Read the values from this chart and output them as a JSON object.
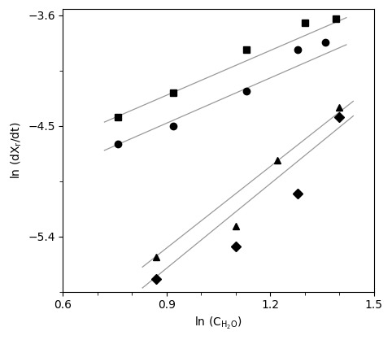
{
  "xlabel": "ln (C_{H2O})",
  "ylabel": "ln (dX_r/dt)",
  "xlim": [
    0.6,
    1.5
  ],
  "ylim": [
    -5.85,
    -3.55
  ],
  "xticks": [
    0.6,
    0.9,
    1.2,
    1.5
  ],
  "yticks": [
    -3.6,
    -4.5,
    -5.4
  ],
  "series": {
    "square": {
      "x": [
        0.76,
        0.92,
        1.13,
        1.3,
        1.39
      ],
      "y": [
        -4.43,
        -4.23,
        -3.88,
        -3.66,
        -3.63
      ],
      "marker": "s",
      "fit_x": [
        0.72,
        1.42
      ],
      "fit_y": [
        -4.47,
        -3.62
      ]
    },
    "circle": {
      "x": [
        0.76,
        0.92,
        1.13,
        1.28,
        1.36
      ],
      "y": [
        -4.65,
        -4.5,
        -4.22,
        -3.88,
        -3.82
      ],
      "marker": "o",
      "fit_x": [
        0.72,
        1.42
      ],
      "fit_y": [
        -4.7,
        -3.84
      ]
    },
    "triangle": {
      "x": [
        0.87,
        1.1,
        1.22,
        1.4
      ],
      "y": [
        -5.57,
        -5.32,
        -4.78,
        -4.35
      ],
      "marker": "^",
      "fit_x": [
        0.83,
        1.44
      ],
      "fit_y": [
        -5.65,
        -4.3
      ]
    },
    "diamond": {
      "x": [
        0.87,
        1.1,
        1.28,
        1.4
      ],
      "y": [
        -5.75,
        -5.48,
        -5.05,
        -4.43
      ],
      "marker": "D",
      "fit_x": [
        0.83,
        1.44
      ],
      "fit_y": [
        -5.82,
        -4.42
      ]
    }
  },
  "background_color": "#ffffff",
  "line_color": "#999999",
  "marker_color": "#000000",
  "marker_size": 6,
  "line_width": 0.9,
  "font_size": 10,
  "tick_font_size": 10
}
